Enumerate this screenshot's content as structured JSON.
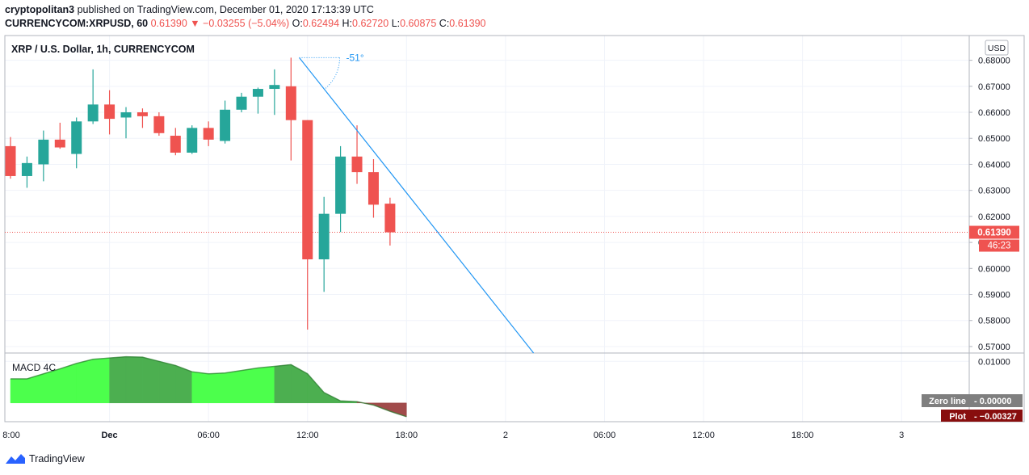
{
  "header": {
    "publisher": "cryptopolitan3",
    "published_text": "published on TradingView.com, December 01, 2020 17:13:39 UTC",
    "symbol": "CURRENCYCOM:XRPUSD, 60",
    "last": "0.61390",
    "change": "−0.03255 (−5.04%)",
    "o_label": "O:",
    "o_value": "0.62494",
    "h_label": "H:",
    "h_value": "0.62720",
    "l_label": "L:",
    "l_value": "0.60875",
    "c_label": "C:",
    "c_value": "0.61390"
  },
  "footer": {
    "brand": "TradingView"
  },
  "colors": {
    "up": "#26a69a",
    "down": "#ef5350",
    "trendline": "#2196f3",
    "macd_bright": "#4cff4c",
    "macd_dark": "#4caf50",
    "macd_red": "#a14b4b"
  },
  "chart_data": {
    "type": "candlestick",
    "title": "XRP / U.S. Dollar, 1h, CURRENCYCOM",
    "currency_label": "USD",
    "y_ticks": [
      "0.68000",
      "0.67000",
      "0.66000",
      "0.65000",
      "0.64000",
      "0.63000",
      "0.62000",
      "0.61000",
      "0.60000",
      "0.59000",
      "0.58000",
      "0.57000"
    ],
    "y_range": [
      0.5675,
      0.6895
    ],
    "x_ticks": [
      {
        "label": "8:00",
        "bar": -0.3
      },
      {
        "label": "Dec",
        "bar": 6
      },
      {
        "label": "06:00",
        "bar": 12
      },
      {
        "label": "12:00",
        "bar": 18
      },
      {
        "label": "18:00",
        "bar": 24
      },
      {
        "label": "2",
        "bar": 30
      },
      {
        "label": "06:00",
        "bar": 36
      },
      {
        "label": "12:00",
        "bar": 42
      },
      {
        "label": "18:00",
        "bar": 48
      },
      {
        "label": "3",
        "bar": 54
      }
    ],
    "candles": [
      {
        "o": 0.647,
        "h": 0.6505,
        "l": 0.6345,
        "c": 0.6355
      },
      {
        "o": 0.6355,
        "h": 0.643,
        "l": 0.631,
        "c": 0.6405
      },
      {
        "o": 0.64,
        "h": 0.653,
        "l": 0.6335,
        "c": 0.6495
      },
      {
        "o": 0.6495,
        "h": 0.656,
        "l": 0.646,
        "c": 0.6465
      },
      {
        "o": 0.644,
        "h": 0.658,
        "l": 0.6385,
        "c": 0.6565
      },
      {
        "o": 0.6565,
        "h": 0.6765,
        "l": 0.6555,
        "c": 0.663
      },
      {
        "o": 0.663,
        "h": 0.6685,
        "l": 0.6515,
        "c": 0.6575
      },
      {
        "o": 0.658,
        "h": 0.662,
        "l": 0.65,
        "c": 0.66
      },
      {
        "o": 0.66,
        "h": 0.6615,
        "l": 0.654,
        "c": 0.6585
      },
      {
        "o": 0.6585,
        "h": 0.66,
        "l": 0.651,
        "c": 0.652
      },
      {
        "o": 0.651,
        "h": 0.654,
        "l": 0.6435,
        "c": 0.6445
      },
      {
        "o": 0.6445,
        "h": 0.655,
        "l": 0.644,
        "c": 0.654
      },
      {
        "o": 0.654,
        "h": 0.6565,
        "l": 0.647,
        "c": 0.6495
      },
      {
        "o": 0.649,
        "h": 0.6645,
        "l": 0.648,
        "c": 0.661
      },
      {
        "o": 0.661,
        "h": 0.6675,
        "l": 0.66,
        "c": 0.666
      },
      {
        "o": 0.666,
        "h": 0.6695,
        "l": 0.6595,
        "c": 0.669
      },
      {
        "o": 0.669,
        "h": 0.6765,
        "l": 0.659,
        "c": 0.6705
      },
      {
        "o": 0.67,
        "h": 0.681,
        "l": 0.6415,
        "c": 0.657
      },
      {
        "o": 0.657,
        "h": 0.657,
        "l": 0.5765,
        "c": 0.6035
      },
      {
        "o": 0.6035,
        "h": 0.6275,
        "l": 0.591,
        "c": 0.621
      },
      {
        "o": 0.621,
        "h": 0.647,
        "l": 0.614,
        "c": 0.643
      },
      {
        "o": 0.643,
        "h": 0.655,
        "l": 0.6325,
        "c": 0.637
      },
      {
        "o": 0.637,
        "h": 0.642,
        "l": 0.6195,
        "c": 0.6245
      },
      {
        "o": 0.6249,
        "h": 0.6272,
        "l": 0.6088,
        "c": 0.6139
      }
    ],
    "last_price": {
      "value": 0.6139,
      "label": "0.61390",
      "countdown": "46:23"
    },
    "trendline": {
      "from": {
        "bar": 17.5,
        "price": 0.681
      },
      "to": {
        "bar": 31.7,
        "price": 0.5675
      },
      "angle_label": "-51°"
    },
    "macd": {
      "title": "MACD 4C",
      "y_ticks": [
        "0.01000"
      ],
      "y_range": [
        -0.0045,
        0.012
      ],
      "values": [
        0.0058,
        0.0058,
        0.007,
        0.0082,
        0.0095,
        0.0105,
        0.0108,
        0.0111,
        0.011,
        0.01,
        0.009,
        0.0075,
        0.007,
        0.0072,
        0.0078,
        0.0084,
        0.0088,
        0.0092,
        0.007,
        0.0025,
        0.0005,
        0.0003,
        -0.0005,
        -0.002,
        -0.0033
      ],
      "colors": [
        "dark",
        "bright",
        "bright",
        "bright",
        "bright",
        "bright",
        "bright",
        "dark",
        "dark",
        "dark",
        "dark",
        "dark",
        "bright",
        "bright",
        "bright",
        "bright",
        "bright",
        "dark",
        "dark",
        "dark",
        "dark",
        "dark",
        "red",
        "red",
        "red"
      ],
      "zero_line_label": "Zero line",
      "zero_line_value": "0.00000",
      "plot_label": "Plot",
      "plot_value": "−0.00327"
    }
  }
}
